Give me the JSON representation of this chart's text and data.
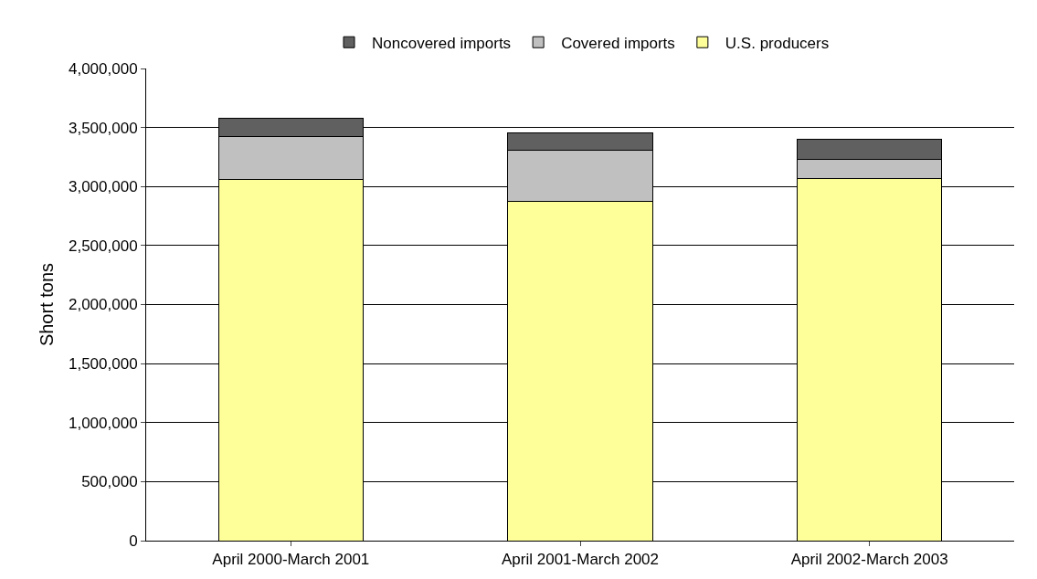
{
  "chart_data": {
    "type": "bar",
    "stacked": true,
    "ylabel": "Short tons",
    "categories": [
      "April 2000-March 2001",
      "April 2001-March 2002",
      "April 2002-March 2003"
    ],
    "series": [
      {
        "name": "U.S. producers",
        "color": "#ffff99",
        "values": [
          3063000,
          2871000,
          3071000
        ]
      },
      {
        "name": "Covered imports",
        "color": "#c0c0c0",
        "values": [
          361000,
          438000,
          161000
        ]
      },
      {
        "name": "Noncovered imports",
        "color": "#606060",
        "values": [
          154000,
          146000,
          169000
        ]
      }
    ],
    "ylim": [
      0,
      4000000
    ],
    "yticks": [
      {
        "value": 0,
        "label": "0"
      },
      {
        "value": 500000,
        "label": "500,000"
      },
      {
        "value": 1000000,
        "label": "1,000,000"
      },
      {
        "value": 1500000,
        "label": "1,500,000"
      },
      {
        "value": 2000000,
        "label": "2,000,000"
      },
      {
        "value": 2500000,
        "label": "2,500,000"
      },
      {
        "value": 3000000,
        "label": "3,000,000"
      },
      {
        "value": 3500000,
        "label": "3,500,000"
      },
      {
        "value": 4000000,
        "label": "4,000,000"
      }
    ],
    "grid": "y",
    "legend": "top"
  }
}
